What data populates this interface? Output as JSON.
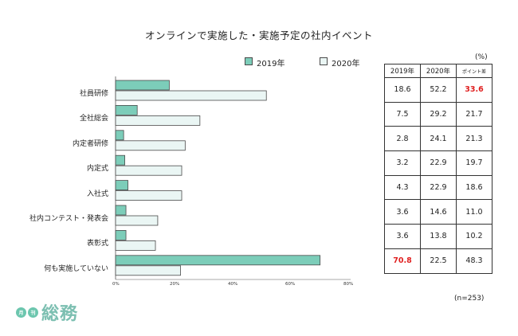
{
  "chart_data": {
    "type": "bar",
    "orientation": "horizontal",
    "title": "オンラインで実施した・実施予定の社内イベント",
    "categories": [
      "社員研修",
      "全社総会",
      "内定者研修",
      "内定式",
      "入社式",
      "社内コンテスト・発表会",
      "表彰式",
      "何も実施していない"
    ],
    "series": [
      {
        "name": "2019年",
        "values": [
          18.6,
          7.5,
          2.8,
          3.2,
          4.3,
          3.6,
          3.6,
          70.8
        ],
        "color": "#7ccdb9"
      },
      {
        "name": "2020年",
        "values": [
          52.2,
          29.2,
          24.1,
          22.9,
          22.9,
          14.6,
          13.8,
          22.5
        ],
        "color": "#eaf6f4"
      }
    ],
    "xlim": [
      0,
      80
    ],
    "xticks": [
      "0%",
      "20%",
      "40%",
      "60%",
      "80%"
    ],
    "xtick_values": [
      0,
      20,
      40,
      60,
      80
    ],
    "legend_position": "top"
  },
  "table": {
    "unit": "(%)",
    "headers": [
      "2019年",
      "2020年",
      "ポイント差"
    ],
    "rows": [
      [
        "18.6",
        "52.2",
        "33.6"
      ],
      [
        "7.5",
        "29.2",
        "21.7"
      ],
      [
        "2.8",
        "24.1",
        "21.3"
      ],
      [
        "3.2",
        "22.9",
        "19.7"
      ],
      [
        "4.3",
        "22.9",
        "18.6"
      ],
      [
        "3.6",
        "14.6",
        "11.0"
      ],
      [
        "3.6",
        "13.8",
        "10.2"
      ],
      [
        "70.8",
        "22.5",
        "48.3"
      ]
    ],
    "highlight_color": "#e02020"
  },
  "note": "(n=253)",
  "logo": {
    "badge1": "月",
    "badge2": "刊",
    "text": "総務",
    "color": "#7cbfb1"
  }
}
